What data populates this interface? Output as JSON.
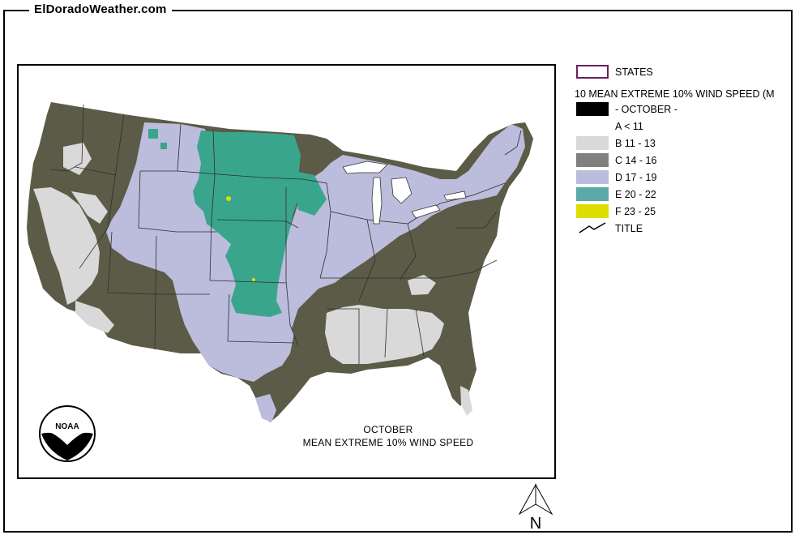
{
  "site": {
    "title": "ElDoradoWeather.com"
  },
  "map": {
    "caption_line1": "OCTOBER",
    "caption_line2": "MEAN EXTREME 10% WIND SPEED",
    "logo_text": "NOAA"
  },
  "legend": {
    "states_label": "STATES",
    "layer_title": "10 MEAN EXTREME 10% WIND SPEED (M",
    "month_label": "- OCTOBER -",
    "classes": [
      {
        "label": "A < 11",
        "color": "#ffffff"
      },
      {
        "label": "B 11 - 13",
        "color": "#d9d9d9"
      },
      {
        "label": "C 14 - 16",
        "color": "#808080"
      },
      {
        "label": "D 17 - 19",
        "color": "#bcbcdc"
      },
      {
        "label": "E 20 - 22",
        "color": "#5aaaa8"
      },
      {
        "label": "F 23 - 25",
        "color": "#dede00"
      }
    ],
    "title_label": "TITLE",
    "states_color": "#6a2060"
  },
  "north_arrow": {
    "label": "N"
  },
  "palette": {
    "olive": "#5b5b47",
    "lavender": "#bcbcdc",
    "teal": "#3aa58d",
    "light_gray": "#d9d9d9",
    "yellow": "#dede00"
  }
}
